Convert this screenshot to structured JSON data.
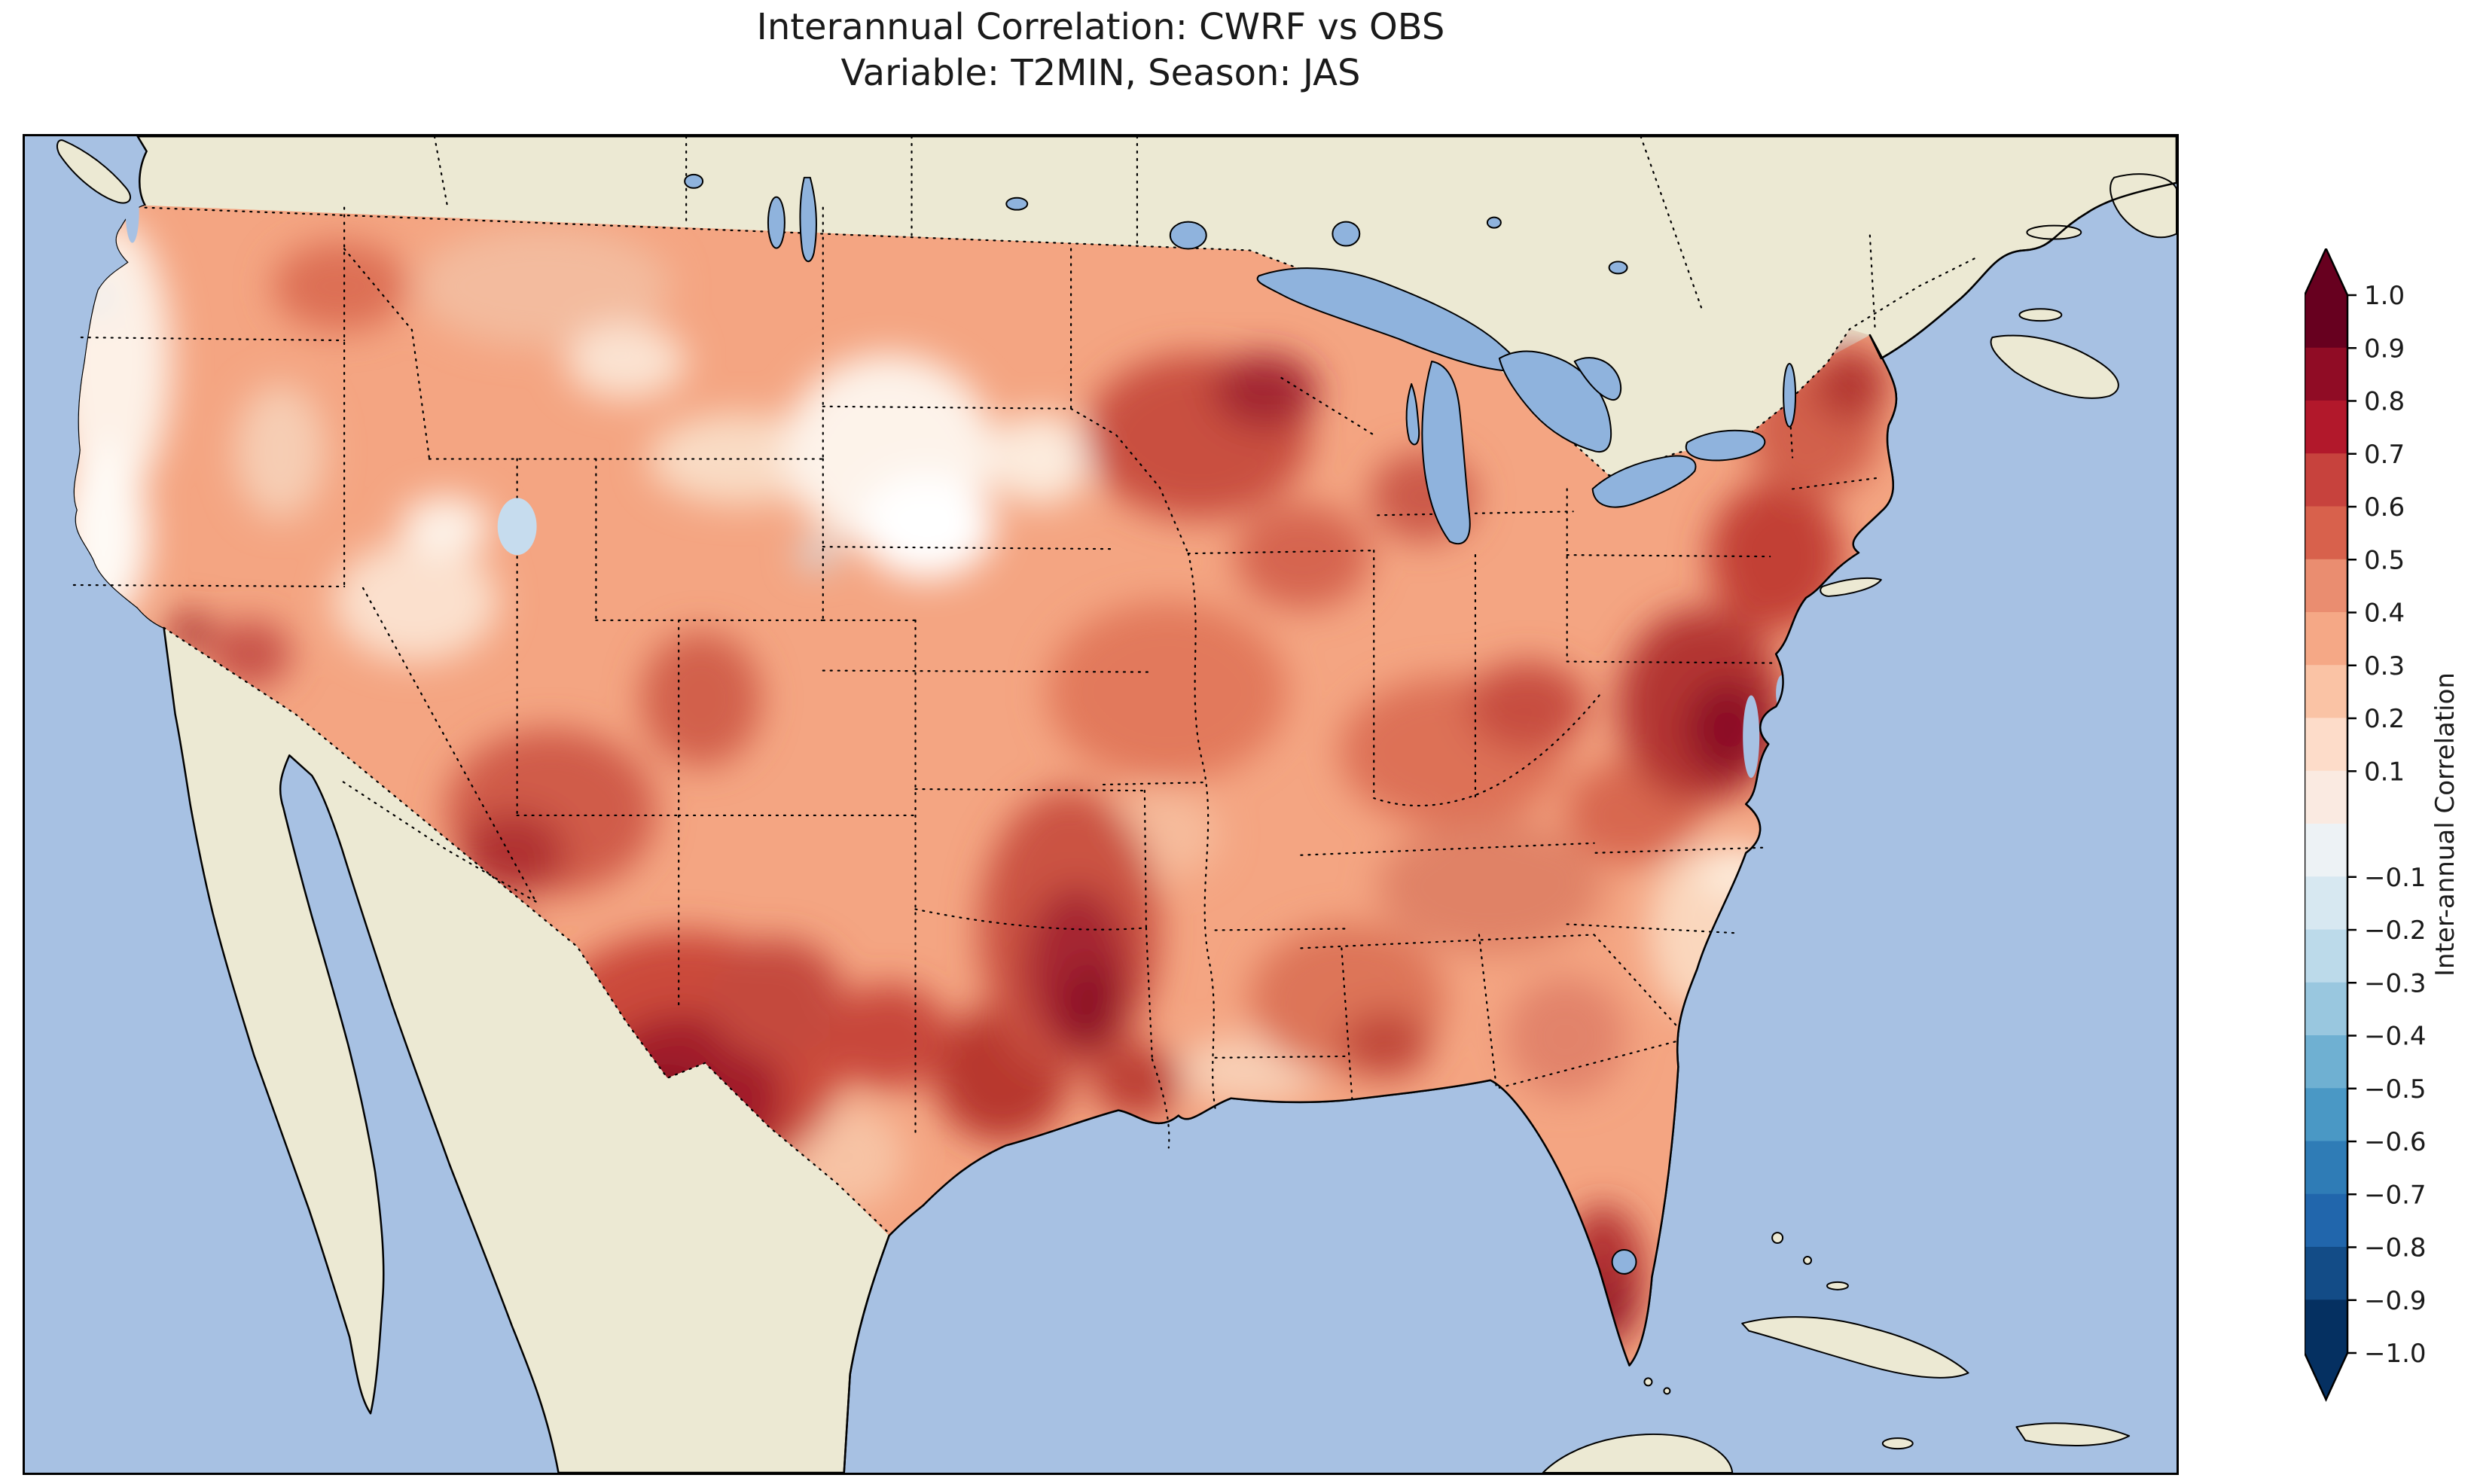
{
  "title": {
    "line1": "Interannual Correlation: CWRF vs OBS",
    "line2": "Variable: T2MIN, Season: JAS"
  },
  "colorbar": {
    "label": "Inter-annual Correlation",
    "tick_labels": [
      "1.0",
      "0.9",
      "0.8",
      "0.7",
      "0.6",
      "0.5",
      "0.4",
      "0.3",
      "0.2",
      "0.1",
      "−0.1",
      "−0.2",
      "−0.3",
      "−0.4",
      "−0.5",
      "−0.6",
      "−0.7",
      "−0.8",
      "−0.9",
      "−1.0"
    ],
    "tick_values": [
      1.0,
      0.9,
      0.8,
      0.7,
      0.6,
      0.5,
      0.4,
      0.3,
      0.2,
      0.1,
      -0.1,
      -0.2,
      -0.3,
      -0.4,
      -0.5,
      -0.6,
      -0.7,
      -0.8,
      -0.9,
      -1.0
    ],
    "band_colors": [
      "#67001f",
      "#900c25",
      "#b2182b",
      "#c7423d",
      "#d8614c",
      "#ea8d70",
      "#f5a886",
      "#fac3a5",
      "#fddcc9",
      "#faeae1",
      "#edf2f5",
      "#d7e8f1",
      "#bcdaea",
      "#99c7df",
      "#6fb0d2",
      "#4a98c5",
      "#2f7cb6",
      "#2166ac",
      "#134c87",
      "#053061"
    ],
    "over_color": "#67001f",
    "under_color": "#053061"
  },
  "colors": {
    "ocean": "#a7c1e3",
    "land": "#ece9d3",
    "lake": "#8fb3dd",
    "us_base": "#f4a582",
    "outline": "#000000",
    "text": "#1a1a1a"
  },
  "chart_data": {
    "type": "heatmap",
    "title": "Interannual Correlation: CWRF vs OBS",
    "subtitle": "Variable: T2MIN, Season: JAS",
    "comparison": "CWRF vs OBS",
    "variable": "T2MIN",
    "season": "JAS",
    "quantity": "Inter-annual Correlation",
    "value_range": [
      -1.0,
      1.0
    ],
    "contour_interval": 0.1,
    "colormap": "Diverging red-blue (RdBu reversed): dark red = +1.0, white near 0, dark blue = -1.0, in discrete 0.1 bands with triangular over/under arrows",
    "colorbar_ticks": [
      1.0,
      0.9,
      0.8,
      0.7,
      0.6,
      0.5,
      0.4,
      0.3,
      0.2,
      0.1,
      -0.1,
      -0.2,
      -0.3,
      -0.4,
      -0.5,
      -0.6,
      -0.7,
      -0.8,
      -0.9,
      -1.0
    ],
    "colorbar_tick_note": "0.0 boundary is not labeled",
    "legend_position": "vertical colorbar on right",
    "region": "Continental United States; map also shows southern Canada, northern Mexico with Baja California, Great Lakes, Gulf of Mexico, Cuba and Atlantic/Pacific coasts",
    "grid": "dotted state, province and national borders",
    "approx_regional_values": [
      {
        "region": "West Texas / southern New Mexico",
        "approx_correlation": 0.85
      },
      {
        "region": "Central-east Texas",
        "approx_correlation": 0.75
      },
      {
        "region": "Kansas / Oklahoma / Arkansas corridor",
        "approx_correlation": 0.8
      },
      {
        "region": "Arizona / Four Corners",
        "approx_correlation": 0.7
      },
      {
        "region": "Colorado Rockies",
        "approx_correlation": 0.6
      },
      {
        "region": "Southern California interior",
        "approx_correlation": 0.65
      },
      {
        "region": "Pacific coast (Oregon / N. California)",
        "approx_correlation": 0.1
      },
      {
        "region": "Nevada Great Basin",
        "approx_correlation": 0.3
      },
      {
        "region": "Montana",
        "approx_correlation": 0.4
      },
      {
        "region": "Central High Plains (Nebraska / S. Dakota)",
        "approx_correlation": 0.05
      },
      {
        "region": "Small spot near Nebraska border",
        "approx_correlation": -0.15
      },
      {
        "region": "Northern Minnesota / Wisconsin",
        "approx_correlation": 0.75
      },
      {
        "region": "Midwest (Iowa / Illinois / Missouri)",
        "approx_correlation": 0.5
      },
      {
        "region": "Ohio Valley",
        "approx_correlation": 0.55
      },
      {
        "region": "Mid-Atlantic (Virginia / Maryland / Delaware)",
        "approx_correlation": 0.85
      },
      {
        "region": "Northeast corridor (NJ / NY / New England)",
        "approx_correlation": 0.65
      },
      {
        "region": "Tennessee / Kentucky",
        "approx_correlation": 0.55
      },
      {
        "region": "Alabama / Mississippi",
        "approx_correlation": 0.65
      },
      {
        "region": "Coastal Carolinas / Georgia coast",
        "approx_correlation": 0.2
      },
      {
        "region": "Central Florida",
        "approx_correlation": 0.75
      },
      {
        "region": "South Texas",
        "approx_correlation": 0.35
      }
    ]
  }
}
